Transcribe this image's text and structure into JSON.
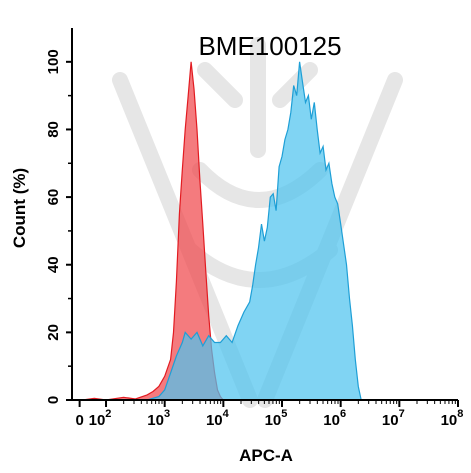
{
  "chart_data": {
    "type": "area",
    "title": "BME100125",
    "xlabel": "APC-A",
    "ylabel": "Count (%)",
    "x_scale": "log",
    "ylim": [
      0,
      110
    ],
    "x_tick_labels": [
      {
        "base": "0",
        "exp": ""
      },
      {
        "base": "10",
        "exp": "2"
      },
      {
        "base": "10",
        "exp": "3"
      },
      {
        "base": "10",
        "exp": "4"
      },
      {
        "base": "10",
        "exp": "5"
      },
      {
        "base": "10",
        "exp": "6"
      },
      {
        "base": "10",
        "exp": "7"
      },
      {
        "base": "10",
        "exp": "8"
      }
    ],
    "y_ticks": [
      0,
      20,
      40,
      60,
      80,
      100
    ],
    "grid": false,
    "series": [
      {
        "fill": "#f0484c",
        "stroke": "#e21b21",
        "points": [
          [
            1.6,
            0
          ],
          [
            1.8,
            0.5
          ],
          [
            2.0,
            0
          ],
          [
            2.3,
            0.8
          ],
          [
            2.5,
            0.3
          ],
          [
            2.7,
            1.5
          ],
          [
            2.8,
            2.5
          ],
          [
            2.9,
            4
          ],
          [
            3.0,
            7
          ],
          [
            3.1,
            12
          ],
          [
            3.15,
            20
          ],
          [
            3.2,
            35
          ],
          [
            3.25,
            55
          ],
          [
            3.3,
            68
          ],
          [
            3.35,
            80
          ],
          [
            3.4,
            90
          ],
          [
            3.45,
            100
          ],
          [
            3.5,
            92
          ],
          [
            3.55,
            80
          ],
          [
            3.6,
            65
          ],
          [
            3.65,
            52
          ],
          [
            3.7,
            38
          ],
          [
            3.75,
            25
          ],
          [
            3.8,
            15
          ],
          [
            3.85,
            8
          ],
          [
            3.9,
            3
          ],
          [
            3.95,
            1
          ],
          [
            4.0,
            0
          ]
        ]
      },
      {
        "fill": "#4fc3ef",
        "stroke": "#1e9fd6",
        "points": [
          [
            2.7,
            0
          ],
          [
            2.9,
            1
          ],
          [
            3.0,
            3
          ],
          [
            3.1,
            8
          ],
          [
            3.2,
            13
          ],
          [
            3.3,
            17
          ],
          [
            3.35,
            20
          ],
          [
            3.45,
            18
          ],
          [
            3.55,
            20
          ],
          [
            3.65,
            16
          ],
          [
            3.75,
            19
          ],
          [
            3.85,
            17
          ],
          [
            3.95,
            17
          ],
          [
            4.05,
            19
          ],
          [
            4.15,
            17
          ],
          [
            4.25,
            22
          ],
          [
            4.35,
            26
          ],
          [
            4.45,
            29
          ],
          [
            4.5,
            34
          ],
          [
            4.55,
            40
          ],
          [
            4.6,
            45
          ],
          [
            4.65,
            52
          ],
          [
            4.7,
            47
          ],
          [
            4.75,
            51
          ],
          [
            4.8,
            60
          ],
          [
            4.85,
            61
          ],
          [
            4.9,
            56
          ],
          [
            4.95,
            69
          ],
          [
            5.0,
            72
          ],
          [
            5.05,
            77
          ],
          [
            5.1,
            80
          ],
          [
            5.15,
            85
          ],
          [
            5.2,
            93
          ],
          [
            5.25,
            90
          ],
          [
            5.3,
            100
          ],
          [
            5.35,
            94
          ],
          [
            5.4,
            88
          ],
          [
            5.45,
            90
          ],
          [
            5.5,
            83
          ],
          [
            5.55,
            88
          ],
          [
            5.6,
            80
          ],
          [
            5.65,
            73
          ],
          [
            5.7,
            75
          ],
          [
            5.75,
            68
          ],
          [
            5.8,
            70
          ],
          [
            5.85,
            64
          ],
          [
            5.9,
            60
          ],
          [
            5.95,
            58
          ],
          [
            6.0,
            52
          ],
          [
            6.05,
            46
          ],
          [
            6.1,
            40
          ],
          [
            6.15,
            30
          ],
          [
            6.2,
            22
          ],
          [
            6.25,
            12
          ],
          [
            6.3,
            4
          ],
          [
            6.35,
            0
          ]
        ]
      }
    ]
  }
}
